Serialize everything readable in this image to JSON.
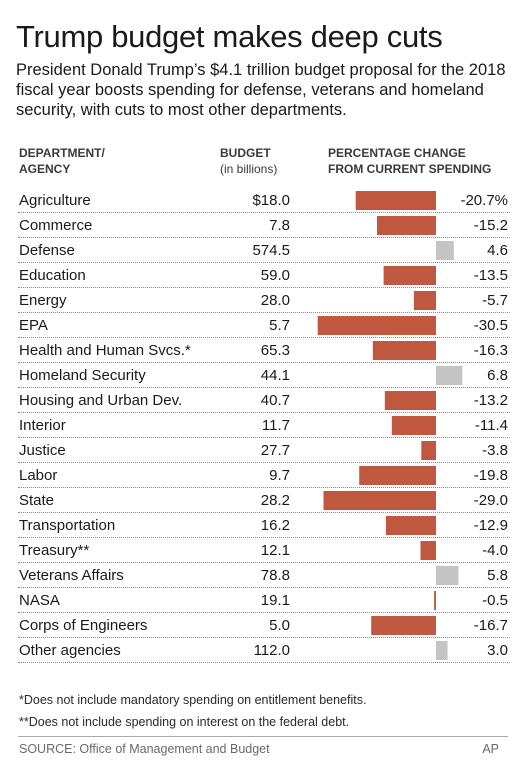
{
  "title": "Trump budget makes deep cuts",
  "subtitle": "President Donald Trump’s $4.1 trillion budget proposal for the 2018 fiscal year boosts spending for defense, veterans and homeland security, with cuts to most other departments.",
  "headers": {
    "department_line1": "DEPARTMENT/",
    "department_line2": "AGENCY",
    "budget_line1": "BUDGET",
    "budget_line2": "(in billions)",
    "pct_line1": "PERCENTAGE CHANGE",
    "pct_line2": "FROM CURRENT SPENDING"
  },
  "chart_data": {
    "type": "table",
    "columns": [
      "DEPARTMENT/AGENCY",
      "BUDGET (in billions)",
      "PERCENTAGE CHANGE FROM CURRENT SPENDING"
    ],
    "rows": [
      {
        "name": "Agriculture",
        "budget": "$18.0",
        "budget_value": 18.0,
        "change_label": "-20.7%",
        "change": -20.7
      },
      {
        "name": "Commerce",
        "budget": "7.8",
        "budget_value": 7.8,
        "change_label": "-15.2",
        "change": -15.2
      },
      {
        "name": "Defense",
        "budget": "574.5",
        "budget_value": 574.5,
        "change_label": "4.6",
        "change": 4.6
      },
      {
        "name": "Education",
        "budget": "59.0",
        "budget_value": 59.0,
        "change_label": "-13.5",
        "change": -13.5
      },
      {
        "name": "Energy",
        "budget": "28.0",
        "budget_value": 28.0,
        "change_label": "-5.7",
        "change": -5.7
      },
      {
        "name": "EPA",
        "budget": "5.7",
        "budget_value": 5.7,
        "change_label": "-30.5",
        "change": -30.5
      },
      {
        "name": "Health and Human Svcs.*",
        "budget": "65.3",
        "budget_value": 65.3,
        "change_label": "-16.3",
        "change": -16.3
      },
      {
        "name": "Homeland Security",
        "budget": "44.1",
        "budget_value": 44.1,
        "change_label": "6.8",
        "change": 6.8
      },
      {
        "name": "Housing and Urban Dev.",
        "budget": "40.7",
        "budget_value": 40.7,
        "change_label": "-13.2",
        "change": -13.2
      },
      {
        "name": "Interior",
        "budget": "11.7",
        "budget_value": 11.7,
        "change_label": "-11.4",
        "change": -11.4
      },
      {
        "name": "Justice",
        "budget": "27.7",
        "budget_value": 27.7,
        "change_label": "-3.8",
        "change": -3.8
      },
      {
        "name": "Labor",
        "budget": "9.7",
        "budget_value": 9.7,
        "change_label": "-19.8",
        "change": -19.8
      },
      {
        "name": "State",
        "budget": "28.2",
        "budget_value": 28.2,
        "change_label": "-29.0",
        "change": -29.0
      },
      {
        "name": "Transportation",
        "budget": "16.2",
        "budget_value": 16.2,
        "change_label": "-12.9",
        "change": -12.9
      },
      {
        "name": "Treasury**",
        "budget": "12.1",
        "budget_value": 12.1,
        "change_label": "-4.0",
        "change": -4.0
      },
      {
        "name": "Veterans Affairs",
        "budget": "78.8",
        "budget_value": 78.8,
        "change_label": "5.8",
        "change": 5.8
      },
      {
        "name": "NASA",
        "budget": "19.1",
        "budget_value": 19.1,
        "change_label": "-0.5",
        "change": -0.5
      },
      {
        "name": "Corps of Engineers",
        "budget": "5.0",
        "budget_value": 5.0,
        "change_label": "-16.7",
        "change": -16.7
      },
      {
        "name": "Other agencies",
        "budget": "112.0",
        "budget_value": 112.0,
        "change_label": "3.0",
        "change": 3.0
      }
    ],
    "bar_range": [
      -30.5,
      6.8
    ],
    "colors": {
      "negative": "#c0583f",
      "positive": "#c4c4c4"
    }
  },
  "notes": {
    "note1": "*Does not include mandatory spending on entitlement benefits.",
    "note2": "**Does not include spending on interest on the federal debt."
  },
  "source": "SOURCE: Office of Management and Budget",
  "credit": "AP"
}
